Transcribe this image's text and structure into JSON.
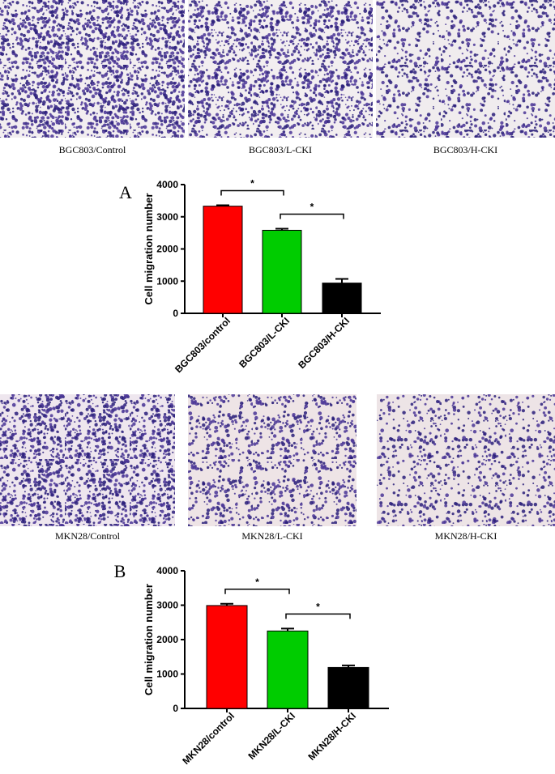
{
  "images": [
    {
      "caption": "BGC803/Control"
    },
    {
      "caption": "BGC803/L-CKI"
    },
    {
      "caption": "BGC803/H-CKI"
    },
    {
      "caption": "MKN28/Control"
    },
    {
      "caption": "MKN28/L-CKI"
    },
    {
      "caption": "MKN28/H-CKI"
    }
  ],
  "chart_data": [
    {
      "type": "bar",
      "panel": "A",
      "ylabel": "Cell migration number",
      "categories": [
        "BGC803/control",
        "BGC803/L-CKI",
        "BGC803/H-CKI"
      ],
      "values": [
        3330,
        2580,
        940
      ],
      "errors": [
        30,
        50,
        130
      ],
      "colors": [
        "#ff0000",
        "#00cc00",
        "#000000"
      ],
      "ylim": [
        0,
        4000
      ],
      "yticks": [
        0,
        1000,
        2000,
        3000,
        4000
      ],
      "annotations": [
        {
          "label": "*",
          "between": [
            "BGC803/control",
            "BGC803/L-CKI"
          ]
        },
        {
          "label": "*",
          "between": [
            "BGC803/L-CKI",
            "BGC803/H-CKI"
          ]
        }
      ]
    },
    {
      "type": "bar",
      "panel": "B",
      "ylabel": "Cell migration number",
      "categories": [
        "MKN28/control",
        "MKN28/L-CKI",
        "MKN28/H-CKI"
      ],
      "values": [
        2990,
        2250,
        1190
      ],
      "errors": [
        50,
        70,
        60
      ],
      "colors": [
        "#ff0000",
        "#00cc00",
        "#000000"
      ],
      "ylim": [
        0,
        4000
      ],
      "yticks": [
        0,
        1000,
        2000,
        3000,
        4000
      ],
      "annotations": [
        {
          "label": "*",
          "between": [
            "MKN28/control",
            "MKN28/L-CKI"
          ]
        },
        {
          "label": "*",
          "between": [
            "MKN28/L-CKI",
            "MKN28/H-CKI"
          ]
        }
      ]
    }
  ]
}
